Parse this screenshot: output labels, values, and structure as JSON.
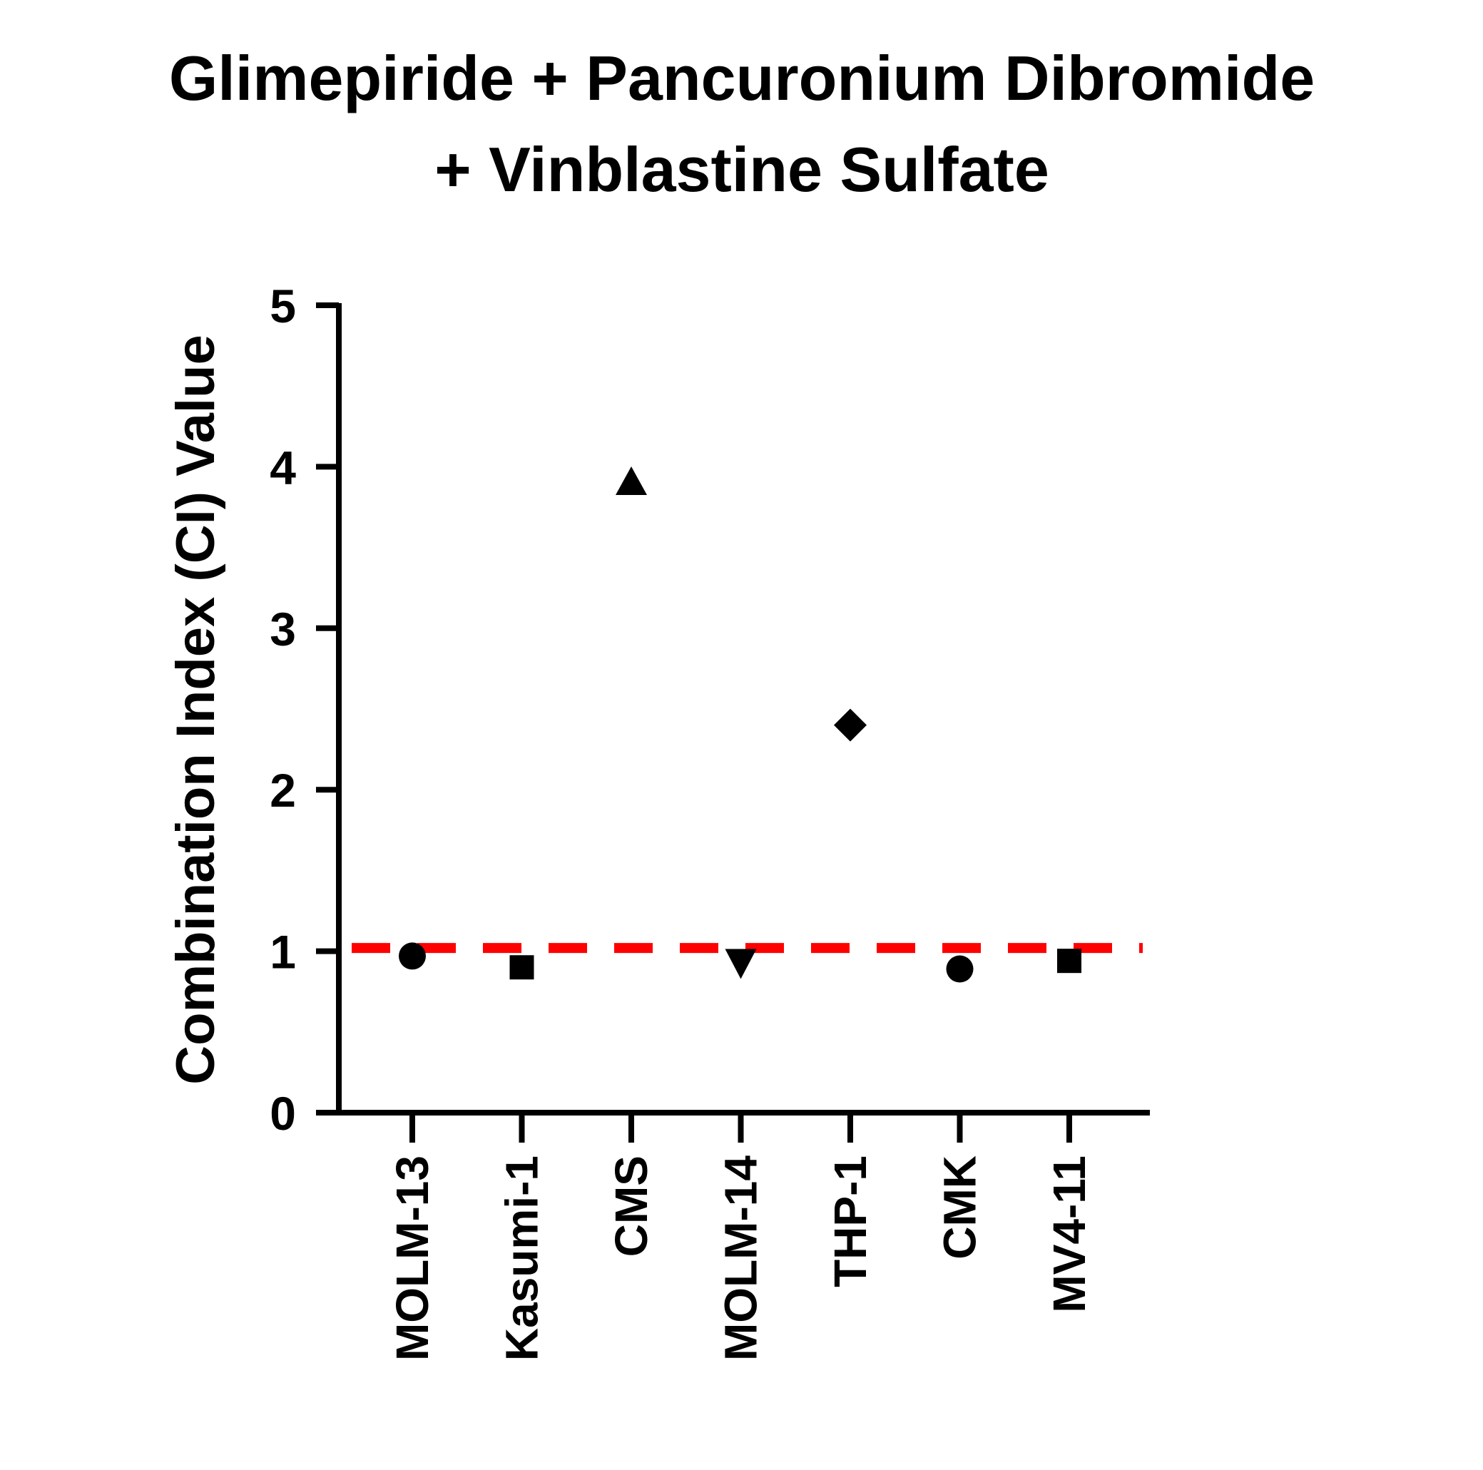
{
  "chart_data": {
    "type": "scatter",
    "title_lines": [
      "Glimepiride + Pancuronium Dibromide",
      "+ Vinblastine Sulfate"
    ],
    "ylabel": "Combination Index (CI) Value",
    "xlabel": "",
    "ylim": [
      0,
      5
    ],
    "yticks": [
      0,
      1,
      2,
      3,
      4,
      5
    ],
    "categories": [
      "MOLM-13",
      "Kasumi-1",
      "CMS",
      "MOLM-14",
      "THP-1",
      "CMK",
      "MV4-11"
    ],
    "points": [
      {
        "category": "MOLM-13",
        "value": 0.97,
        "marker": "circle"
      },
      {
        "category": "Kasumi-1",
        "value": 0.9,
        "marker": "square"
      },
      {
        "category": "CMS",
        "value": 3.9,
        "marker": "triangle-up"
      },
      {
        "category": "MOLM-14",
        "value": 0.93,
        "marker": "triangle-down"
      },
      {
        "category": "THP-1",
        "value": 2.4,
        "marker": "diamond"
      },
      {
        "category": "CMK",
        "value": 0.89,
        "marker": "circle"
      },
      {
        "category": "MV4-11",
        "value": 0.94,
        "marker": "square"
      }
    ],
    "reference_line": {
      "value": 1.02,
      "style": "dashed",
      "color": "#ff0000"
    },
    "marker_color": "#000000",
    "axis_color": "#000000",
    "grid": false,
    "legend": "none"
  }
}
